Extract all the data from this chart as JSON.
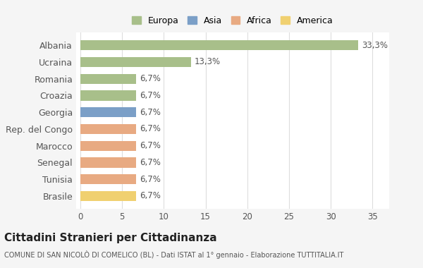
{
  "countries": [
    "Albania",
    "Ucraina",
    "Romania",
    "Croazia",
    "Georgia",
    "Rep. del Congo",
    "Marocco",
    "Senegal",
    "Tunisia",
    "Brasile"
  ],
  "values": [
    33.3,
    13.3,
    6.7,
    6.7,
    6.7,
    6.7,
    6.7,
    6.7,
    6.7,
    6.7
  ],
  "labels": [
    "33,3%",
    "13,3%",
    "6,7%",
    "6,7%",
    "6,7%",
    "6,7%",
    "6,7%",
    "6,7%",
    "6,7%",
    "6,7%"
  ],
  "colors": [
    "#a8bf8a",
    "#a8bf8a",
    "#a8bf8a",
    "#a8bf8a",
    "#7b9fc7",
    "#e8aa82",
    "#e8aa82",
    "#e8aa82",
    "#e8aa82",
    "#f0d070"
  ],
  "legend_labels": [
    "Europa",
    "Asia",
    "Africa",
    "America"
  ],
  "legend_colors": [
    "#a8bf8a",
    "#7b9fc7",
    "#e8aa82",
    "#f0d070"
  ],
  "xlabel_ticks": [
    0,
    5,
    10,
    15,
    20,
    25,
    30,
    35
  ],
  "xlim": [
    -0.5,
    37
  ],
  "title": "Cittadini Stranieri per Cittadinanza",
  "subtitle": "COMUNE DI SAN NICOLÒ DI COMELICO (BL) - Dati ISTAT al 1° gennaio - Elaborazione TUTTITALIA.IT",
  "background_color": "#f5f5f5",
  "bar_background": "#ffffff"
}
